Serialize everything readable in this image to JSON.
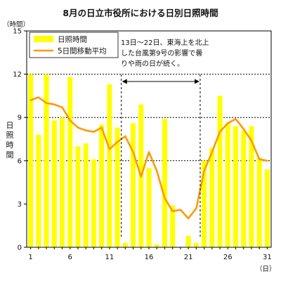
{
  "chart_data": {
    "type": "bar",
    "title": "8月の日立市役所における日別日照時間",
    "ylabel": "日照時間",
    "y_unit": "（時間）",
    "x_unit": "（日）",
    "ylim": [
      0,
      15
    ],
    "yticks": [
      0,
      3,
      6,
      9,
      12,
      15
    ],
    "xlim": [
      1,
      31
    ],
    "xticks": [
      1,
      6,
      11,
      16,
      21,
      26,
      31
    ],
    "grid": "horizontal dashed at 6, 9, 12",
    "legend_position": "top-left",
    "x": [
      1,
      2,
      3,
      4,
      5,
      6,
      7,
      8,
      9,
      10,
      11,
      12,
      13,
      14,
      15,
      16,
      17,
      18,
      19,
      20,
      21,
      22,
      23,
      24,
      25,
      26,
      27,
      28,
      29,
      30,
      31
    ],
    "series": [
      {
        "name": "日照時間",
        "kind": "bar",
        "color": "#ffff00",
        "values": [
          12.0,
          7.8,
          12.0,
          8.8,
          9.0,
          11.8,
          7.0,
          7.2,
          6.1,
          8.5,
          11.3,
          8.3,
          0.3,
          8.6,
          9.9,
          5.5,
          0.2,
          8.9,
          2.9,
          0.0,
          0.8,
          0.3,
          6.0,
          6.9,
          10.5,
          8.6,
          8.4,
          8.1,
          8.4,
          6.2,
          5.4
        ]
      },
      {
        "name": "5日間移動平均",
        "kind": "line",
        "color": "#ff9900",
        "values": [
          10.2,
          10.4,
          10.0,
          9.9,
          9.7,
          8.8,
          8.3,
          8.1,
          8.0,
          8.3,
          6.8,
          7.3,
          7.7,
          6.6,
          4.9,
          6.6,
          5.3,
          3.4,
          2.5,
          2.6,
          2.0,
          2.7,
          5.3,
          6.6,
          8.0,
          8.6,
          8.9,
          8.2,
          7.4,
          6.1,
          6.0
        ]
      }
    ],
    "annotation": {
      "lines": [
        "13日～22日、東海上を北上",
        "した台風第9号の影響で曇",
        "りや雨の日が続く。"
      ],
      "span": [
        13,
        22
      ]
    }
  }
}
